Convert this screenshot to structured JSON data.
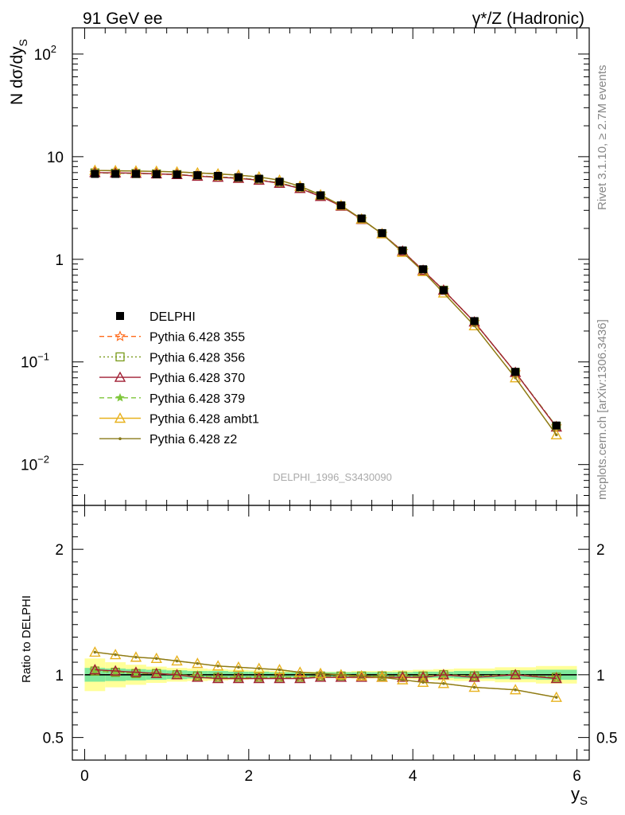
{
  "header": {
    "left": "91 GeV ee",
    "right_main": "γ*/Z (Hadronic)"
  },
  "side": {
    "rivet": "Rivet 3.1.10, ≥ 2.7M events",
    "mcplots": "mcplots.cern.ch [arXiv:1306.3436]"
  },
  "watermark": "DELPHI_1996_S3430090",
  "colors": {
    "DELPHI": "#000000",
    "p355": "#ff6a1a",
    "p356": "#7a9a1a",
    "p370": "#a01f33",
    "p379": "#7ec63a",
    "ambt1": "#e8b21f",
    "z2": "#8a7a1a",
    "band_inner": "#7ee89a",
    "band_outer": "#ffff99"
  },
  "chart_data": [
    {
      "type": "line",
      "panel": "main",
      "ylabel": "N dσ/dy",
      "ylabel_sub": "S",
      "yscale": "log",
      "ylim": [
        0.004,
        180
      ],
      "xlim": [
        -0.15,
        6.15
      ],
      "yticks": [
        {
          "value": 100,
          "base": "10",
          "exp": "2"
        },
        {
          "value": 10,
          "base": "10",
          "exp": ""
        },
        {
          "value": 1,
          "base": "1",
          "exp": ""
        },
        {
          "value": 0.1,
          "base": "10",
          "exp": "−1"
        },
        {
          "value": 0.01,
          "base": "10",
          "exp": "−2"
        }
      ],
      "x": [
        0.125,
        0.375,
        0.625,
        0.875,
        1.125,
        1.375,
        1.625,
        1.875,
        2.125,
        2.375,
        2.625,
        2.875,
        3.125,
        3.375,
        3.625,
        3.875,
        4.125,
        4.375,
        4.75,
        5.25,
        5.75
      ],
      "series": [
        {
          "name": "DELPHI",
          "key": "DELPHI",
          "marker": "square",
          "dash": "none",
          "values": [
            6.8,
            6.8,
            6.8,
            6.75,
            6.7,
            6.6,
            6.5,
            6.3,
            6.1,
            5.7,
            5.05,
            4.2,
            3.35,
            2.5,
            1.8,
            1.22,
            0.8,
            0.5,
            0.25,
            0.08,
            0.024
          ]
        },
        {
          "name": "Pythia 6.428 355",
          "key": "p355",
          "marker": "star",
          "dash": "6,4",
          "values": [
            6.95,
            6.9,
            6.85,
            6.8,
            6.7,
            6.5,
            6.35,
            6.2,
            5.95,
            5.55,
            4.95,
            4.15,
            3.3,
            2.45,
            1.77,
            1.2,
            0.78,
            0.5,
            0.245,
            0.079,
            0.0235
          ]
        },
        {
          "name": "Pythia 6.428 356",
          "key": "p356",
          "marker": "open-square",
          "dash": "2,3",
          "values": [
            6.95,
            6.9,
            6.85,
            6.8,
            6.7,
            6.5,
            6.35,
            6.2,
            5.95,
            5.55,
            4.95,
            4.15,
            3.3,
            2.45,
            1.77,
            1.2,
            0.78,
            0.5,
            0.245,
            0.079,
            0.0235
          ]
        },
        {
          "name": "Pythia 6.428 370",
          "key": "p370",
          "marker": "open-triangle",
          "dash": "none",
          "values": [
            7.0,
            6.95,
            6.9,
            6.8,
            6.7,
            6.45,
            6.3,
            6.15,
            5.9,
            5.5,
            4.9,
            4.1,
            3.3,
            2.45,
            1.77,
            1.2,
            0.78,
            0.5,
            0.245,
            0.079,
            0.0232
          ]
        },
        {
          "name": "Pythia 6.428 379",
          "key": "p379",
          "marker": "star-small",
          "dash": "6,4",
          "values": [
            6.95,
            6.9,
            6.85,
            6.8,
            6.7,
            6.5,
            6.35,
            6.2,
            5.95,
            5.55,
            4.95,
            4.15,
            3.3,
            2.45,
            1.77,
            1.2,
            0.78,
            0.5,
            0.245,
            0.079,
            0.0235
          ]
        },
        {
          "name": "Pythia 6.428 ambt1",
          "key": "ambt1",
          "marker": "open-triangle",
          "dash": "none",
          "values": [
            7.35,
            7.3,
            7.25,
            7.2,
            7.1,
            6.95,
            6.8,
            6.6,
            6.35,
            5.9,
            5.15,
            4.25,
            3.35,
            2.47,
            1.77,
            1.17,
            0.76,
            0.47,
            0.225,
            0.07,
            0.0195
          ]
        },
        {
          "name": "Pythia 6.428 z2",
          "key": "z2",
          "marker": "dot",
          "dash": "none",
          "values": [
            7.35,
            7.3,
            7.25,
            7.2,
            7.1,
            6.95,
            6.8,
            6.6,
            6.35,
            5.9,
            5.15,
            4.25,
            3.35,
            2.47,
            1.77,
            1.17,
            0.76,
            0.47,
            0.225,
            0.07,
            0.0195
          ]
        }
      ]
    },
    {
      "type": "line",
      "panel": "ratio",
      "ylabel": "Ratio to DELPHI",
      "xlabel": "y",
      "xlabel_sub": "S",
      "ylim": [
        0.32,
        2.35
      ],
      "xlim": [
        -0.15,
        6.15
      ],
      "yticks": [
        {
          "value": 2,
          "label": "2"
        },
        {
          "value": 1,
          "label": "1"
        },
        {
          "value": 0.5,
          "label": "0.5"
        }
      ],
      "xticks": [
        {
          "value": 0,
          "label": "0"
        },
        {
          "value": 2,
          "label": "2"
        },
        {
          "value": 4,
          "label": "4"
        },
        {
          "value": 6,
          "label": "6"
        }
      ],
      "x_edges": [
        0.0,
        0.25,
        0.5,
        0.75,
        1.0,
        1.25,
        1.5,
        1.75,
        2.0,
        2.25,
        2.5,
        2.75,
        3.0,
        3.25,
        3.5,
        3.75,
        4.0,
        4.25,
        4.5,
        5.0,
        5.5,
        6.0
      ],
      "band_inner": [
        0.055,
        0.05,
        0.045,
        0.04,
        0.035,
        0.03,
        0.03,
        0.025,
        0.025,
        0.02,
        0.02,
        0.02,
        0.02,
        0.02,
        0.02,
        0.02,
        0.025,
        0.025,
        0.03,
        0.035,
        0.04
      ],
      "band_outer": [
        0.13,
        0.1,
        0.08,
        0.065,
        0.055,
        0.05,
        0.045,
        0.04,
        0.035,
        0.03,
        0.025,
        0.025,
        0.025,
        0.03,
        0.03,
        0.035,
        0.04,
        0.045,
        0.05,
        0.06,
        0.07
      ],
      "series": [
        {
          "key": "p355",
          "values": [
            1.03,
            1.02,
            1.01,
            1.01,
            1.0,
            0.99,
            0.98,
            0.98,
            0.98,
            0.98,
            0.98,
            0.99,
            0.99,
            0.99,
            0.99,
            0.99,
            0.99,
            1.0,
            0.99,
            1.0,
            0.98
          ]
        },
        {
          "key": "p356",
          "values": [
            1.03,
            1.02,
            1.01,
            1.01,
            1.0,
            0.99,
            0.98,
            0.98,
            0.98,
            0.98,
            0.98,
            0.99,
            0.99,
            0.99,
            0.99,
            0.99,
            0.99,
            1.0,
            0.99,
            1.0,
            0.98
          ]
        },
        {
          "key": "p370",
          "values": [
            1.04,
            1.03,
            1.02,
            1.01,
            1.0,
            0.98,
            0.97,
            0.97,
            0.97,
            0.97,
            0.97,
            0.98,
            0.98,
            0.98,
            0.98,
            0.98,
            0.98,
            1.0,
            0.98,
            1.0,
            0.97
          ]
        },
        {
          "key": "p379",
          "values": [
            1.03,
            1.02,
            1.01,
            1.01,
            1.0,
            0.99,
            0.98,
            0.98,
            0.98,
            0.98,
            0.98,
            0.99,
            0.99,
            0.99,
            0.99,
            0.99,
            0.99,
            1.0,
            0.99,
            1.0,
            0.98
          ]
        },
        {
          "key": "ambt1",
          "values": [
            1.18,
            1.16,
            1.14,
            1.13,
            1.11,
            1.09,
            1.07,
            1.06,
            1.05,
            1.04,
            1.02,
            1.01,
            1.0,
            0.99,
            0.98,
            0.96,
            0.94,
            0.93,
            0.9,
            0.88,
            0.82
          ]
        },
        {
          "key": "z2",
          "values": [
            1.18,
            1.16,
            1.14,
            1.13,
            1.11,
            1.09,
            1.07,
            1.06,
            1.05,
            1.04,
            1.02,
            1.01,
            1.0,
            0.99,
            0.98,
            0.96,
            0.94,
            0.93,
            0.9,
            0.88,
            0.82
          ]
        }
      ]
    }
  ]
}
